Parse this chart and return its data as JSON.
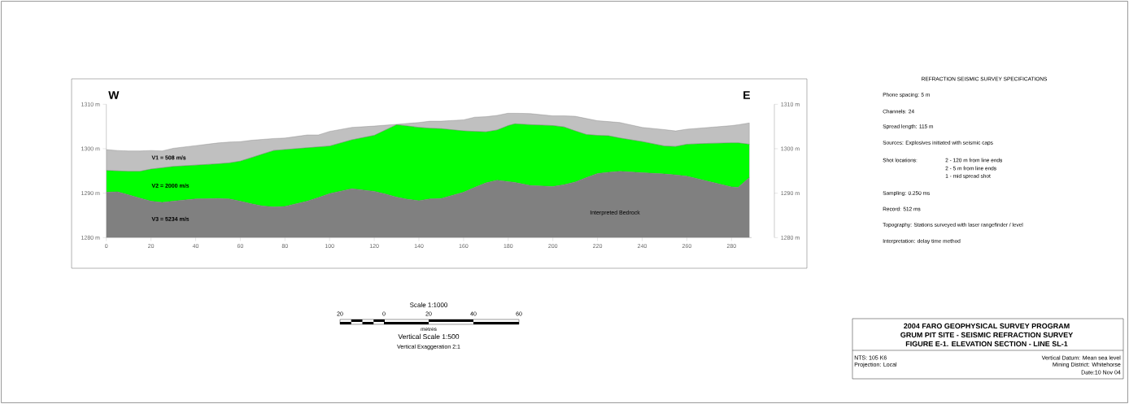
{
  "chart_data": {
    "type": "area",
    "xlim": [
      0,
      289
    ],
    "xticks": [
      0,
      20,
      40,
      60,
      80,
      100,
      120,
      140,
      160,
      180,
      200,
      220,
      240,
      260,
      280
    ],
    "ylim": [
      1280,
      1310
    ],
    "yticks": [
      {
        "value": 1280,
        "label": "1280 m"
      },
      {
        "value": 1290,
        "label": "1290 m"
      },
      {
        "value": 1300,
        "label": "1300 m"
      },
      {
        "value": 1310,
        "label": "1310 m"
      }
    ],
    "y2lim": [
      1280,
      1310
    ],
    "y2ticks": [
      {
        "value": 1280,
        "label": "1280 m"
      },
      {
        "value": 1290,
        "label": "1290 m"
      },
      {
        "value": 1300,
        "label": "1300 m"
      },
      {
        "value": 1310,
        "label": "1310 m"
      }
    ],
    "grid": false,
    "marker": "none",
    "x": [
      0,
      5,
      10,
      15,
      20,
      25,
      30,
      40,
      50,
      55,
      60,
      65,
      70,
      75,
      80,
      90,
      95,
      100,
      110,
      120,
      125,
      130,
      135,
      140,
      145,
      150,
      160,
      165,
      170,
      175,
      180,
      183,
      190,
      200,
      205,
      210,
      215,
      220,
      225,
      230,
      240,
      250,
      255,
      260,
      270,
      280,
      283,
      288
    ],
    "series": [
      {
        "name": "V1 = 508 m/s",
        "color": "#c0c0c0",
        "values": [
          1299.8,
          1299.6,
          1299.5,
          1299.5,
          1299.6,
          1299.5,
          1300.1,
          1300.7,
          1301.3,
          1301.5,
          1301.6,
          1301.9,
          1302.1,
          1302.3,
          1302.4,
          1303.1,
          1303.1,
          1303.9,
          1304.8,
          1305.1,
          1305.3,
          1305.5,
          1305.7,
          1305.9,
          1306.2,
          1306.2,
          1306.5,
          1307.1,
          1307.2,
          1307.5,
          1308.0,
          1308.0,
          1307.9,
          1307.4,
          1307.4,
          1307.3,
          1306.8,
          1306.3,
          1306.1,
          1305.9,
          1304.8,
          1304.3,
          1304.0,
          1304.4,
          1304.8,
          1305.2,
          1305.4,
          1305.8
        ]
      },
      {
        "name": "V2 = 2000 m/s",
        "color": "#00ff00",
        "values": [
          1295.1,
          1295.0,
          1294.9,
          1294.9,
          1295.4,
          1295.7,
          1296.0,
          1296.3,
          1296.6,
          1296.8,
          1297.2,
          1298.0,
          1298.8,
          1299.6,
          1299.8,
          1300.2,
          1300.4,
          1300.6,
          1302.0,
          1303.0,
          1304.2,
          1305.4,
          1305.1,
          1304.8,
          1304.6,
          1304.5,
          1304.0,
          1303.9,
          1303.8,
          1304.2,
          1305.2,
          1305.6,
          1305.4,
          1305.2,
          1304.9,
          1304.0,
          1303.2,
          1303.0,
          1302.9,
          1302.4,
          1301.6,
          1300.6,
          1300.5,
          1301.0,
          1301.2,
          1301.3,
          1301.3,
          1301.0
        ]
      },
      {
        "name": "V3 = 5234 m/s",
        "color": "#808080",
        "values": [
          1290.2,
          1290.3,
          1289.6,
          1288.9,
          1288.2,
          1287.9,
          1288.2,
          1288.7,
          1288.8,
          1288.7,
          1288.2,
          1287.6,
          1287.1,
          1286.9,
          1287.0,
          1288.2,
          1289.0,
          1289.9,
          1291.0,
          1290.4,
          1289.8,
          1289.1,
          1288.6,
          1288.3,
          1288.7,
          1288.8,
          1290.2,
          1291.3,
          1292.3,
          1292.9,
          1292.6,
          1292.4,
          1291.7,
          1291.5,
          1291.9,
          1292.5,
          1293.5,
          1294.4,
          1294.7,
          1294.9,
          1294.6,
          1294.3,
          1294.1,
          1293.8,
          1292.6,
          1291.4,
          1291.3,
          1293.5
        ]
      }
    ],
    "annotations": [
      "W",
      "E",
      "Interpreted Bedrock",
      "REFRACTION SEISMIC SURVEY SPECIFICATIONS",
      "Phone spacing: 5 m",
      "Channels: 24",
      "Spread length: 115 m",
      "Sources: Explosives initiated with seismic caps",
      "Shot locations:",
      "2 - 120 m from line ends",
      "2 - 5 m from line ends",
      "1 - mid spread shot",
      "Sampling: 0.250 ms",
      "Record: 512 ms",
      "Topography: Stations surveyed with laser rangefinder / level",
      "Interpretation: delay time method",
      "Scale 1:1000",
      "20",
      "0",
      "20",
      "40",
      "60",
      "metres",
      "Vertical Scale 1:500",
      "Vertical Exaggeration 2:1",
      "2004 FARO GEOPHYSICAL SURVEY PROGRAM",
      "GRUM PIT SITE - SEISMIC REFRACTION SURVEY",
      "FIGURE E-1. ELEVATION SECTION - LINE SL-1",
      "NTS: 105 K6",
      "Projection: Local",
      "Vertical Datum: Mean sea level",
      "Mining District: Whitehorse",
      "Date:10 Nov 04"
    ]
  }
}
